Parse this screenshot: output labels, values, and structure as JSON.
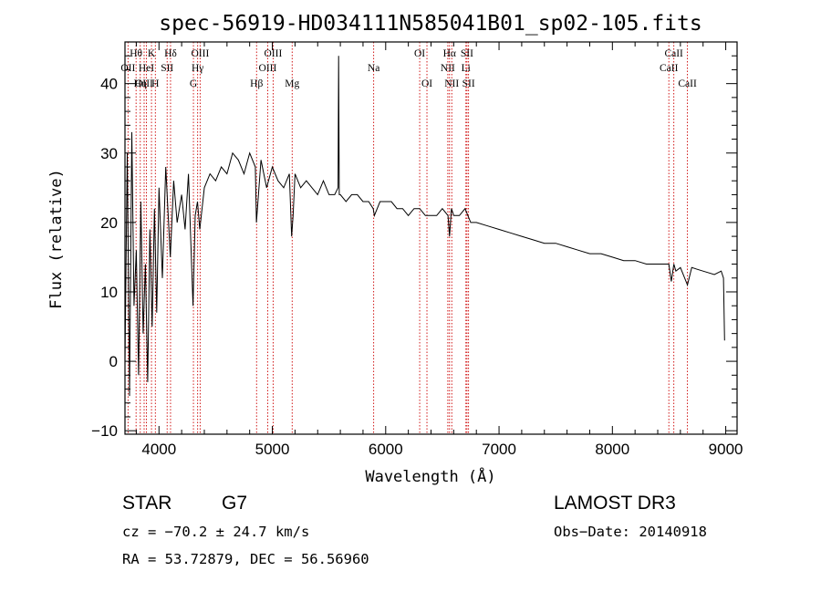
{
  "chart_data": {
    "type": "line",
    "title": "spec-56919-HD034111N585041B01_sp02-105.fits",
    "xlabel": "Wavelength (Å)",
    "ylabel": "Flux (relative)",
    "xlim": [
      3700,
      9100
    ],
    "ylim": [
      -10.5,
      46
    ],
    "xticks": [
      4000,
      5000,
      6000,
      7000,
      8000,
      9000
    ],
    "xtick_labels": [
      "4000",
      "5000",
      "6000",
      "7000",
      "8000",
      "9000"
    ],
    "yticks": [
      -10,
      0,
      10,
      20,
      30,
      40
    ],
    "ytick_labels": [
      "−10",
      "0",
      "10",
      "20",
      "30",
      "40"
    ],
    "series": [
      {
        "name": "spectrum",
        "x": [
          3700,
          3720,
          3740,
          3760,
          3780,
          3800,
          3820,
          3840,
          3860,
          3880,
          3900,
          3920,
          3940,
          3960,
          3980,
          4000,
          4030,
          4060,
          4100,
          4130,
          4160,
          4200,
          4230,
          4260,
          4300,
          4320,
          4340,
          4360,
          4400,
          4450,
          4500,
          4550,
          4600,
          4650,
          4700,
          4750,
          4800,
          4850,
          4860,
          4900,
          4950,
          5000,
          5050,
          5100,
          5150,
          5170,
          5183,
          5200,
          5250,
          5300,
          5350,
          5400,
          5450,
          5500,
          5550,
          5580,
          5585,
          5590,
          5600,
          5650,
          5700,
          5750,
          5800,
          5850,
          5890,
          5900,
          5950,
          6000,
          6050,
          6100,
          6150,
          6200,
          6250,
          6300,
          6350,
          6400,
          6450,
          6500,
          6550,
          6563,
          6580,
          6600,
          6650,
          6700,
          6750,
          6800,
          6900,
          7000,
          7100,
          7200,
          7300,
          7400,
          7500,
          7600,
          7700,
          7800,
          7900,
          8000,
          8100,
          8200,
          8300,
          8400,
          8498,
          8520,
          8542,
          8560,
          8600,
          8662,
          8700,
          8800,
          8900,
          8960,
          8980,
          8990
        ],
        "y": [
          0,
          30,
          -5,
          33,
          8,
          16,
          -2,
          23,
          4,
          14,
          -3,
          19,
          5,
          22,
          7,
          25,
          12,
          28,
          15,
          26,
          20,
          24,
          19,
          27,
          8,
          21,
          23,
          19,
          25,
          27,
          26,
          28,
          27,
          30,
          29,
          27,
          30,
          28,
          20,
          29,
          25,
          28,
          26,
          25,
          27,
          18,
          21,
          27,
          25,
          26,
          25,
          24,
          26,
          24,
          24,
          25,
          44,
          24,
          24,
          23,
          24,
          24,
          23,
          23,
          22,
          21,
          23,
          23,
          23,
          22,
          22,
          21,
          22,
          22,
          21,
          21,
          21,
          22,
          21,
          18,
          22,
          21,
          21,
          22,
          20,
          20,
          19.5,
          19,
          18.5,
          18,
          17.5,
          17,
          17,
          16.5,
          16,
          15.5,
          15.5,
          15,
          14.5,
          14.5,
          14,
          14,
          14,
          11.5,
          14,
          13,
          13.5,
          11,
          13.5,
          13,
          12.5,
          13,
          12,
          3
        ]
      }
    ],
    "spectral_lines": [
      {
        "label": "Hθ",
        "wavelength": 3798,
        "row": 1
      },
      {
        "label": "OII",
        "wavelength": 3727,
        "row": 2
      },
      {
        "label": "OIII",
        "wavelength": 3869,
        "row": 3
      },
      {
        "label": "HeI",
        "wavelength": 3889,
        "row": 2
      },
      {
        "label": "K",
        "wavelength": 3934,
        "row": 1
      },
      {
        "label": "Hη",
        "wavelength": 3835,
        "row": 3
      },
      {
        "label": "H",
        "wavelength": 3968,
        "row": 3
      },
      {
        "label": "SII",
        "wavelength": 4072,
        "row": 2
      },
      {
        "label": "Hδ",
        "wavelength": 4102,
        "row": 1
      },
      {
        "label": "OIII",
        "wavelength": 4363,
        "row": 1
      },
      {
        "label": "Hγ",
        "wavelength": 4341,
        "row": 2
      },
      {
        "label": "G",
        "wavelength": 4304,
        "row": 3
      },
      {
        "label": "Hβ",
        "wavelength": 4861,
        "row": 3
      },
      {
        "label": "OIII",
        "wavelength": 5007,
        "row": 1
      },
      {
        "label": "OIII",
        "wavelength": 4959,
        "row": 2
      },
      {
        "label": "Mg",
        "wavelength": 5175,
        "row": 3
      },
      {
        "label": "Na",
        "wavelength": 5894,
        "row": 2
      },
      {
        "label": "OI",
        "wavelength": 6300,
        "row": 1
      },
      {
        "label": "OI",
        "wavelength": 6364,
        "row": 3
      },
      {
        "label": "Hα",
        "wavelength": 6563,
        "row": 1
      },
      {
        "label": "NII",
        "wavelength": 6548,
        "row": 2
      },
      {
        "label": "NII",
        "wavelength": 6583,
        "row": 3
      },
      {
        "label": "SII",
        "wavelength": 6717,
        "row": 1
      },
      {
        "label": "Li",
        "wavelength": 6708,
        "row": 2
      },
      {
        "label": "SII",
        "wavelength": 6731,
        "row": 3
      },
      {
        "label": "CaII",
        "wavelength": 8542,
        "row": 1
      },
      {
        "label": "CaII",
        "wavelength": 8498,
        "row": 2
      },
      {
        "label": "CaII",
        "wavelength": 8662,
        "row": 3
      }
    ]
  },
  "info": {
    "object_class": "STAR",
    "subclass": "G7",
    "survey": "LAMOST DR3",
    "cz": "cz = −70.2 ± 24.7 km/s",
    "obs_date": "Obs−Date: 20140918",
    "coords": "RA =  53.72879, DEC =  56.56960"
  },
  "colors": {
    "line_marker": "#cc0000",
    "spectrum": "#000000",
    "background": "#ffffff"
  }
}
